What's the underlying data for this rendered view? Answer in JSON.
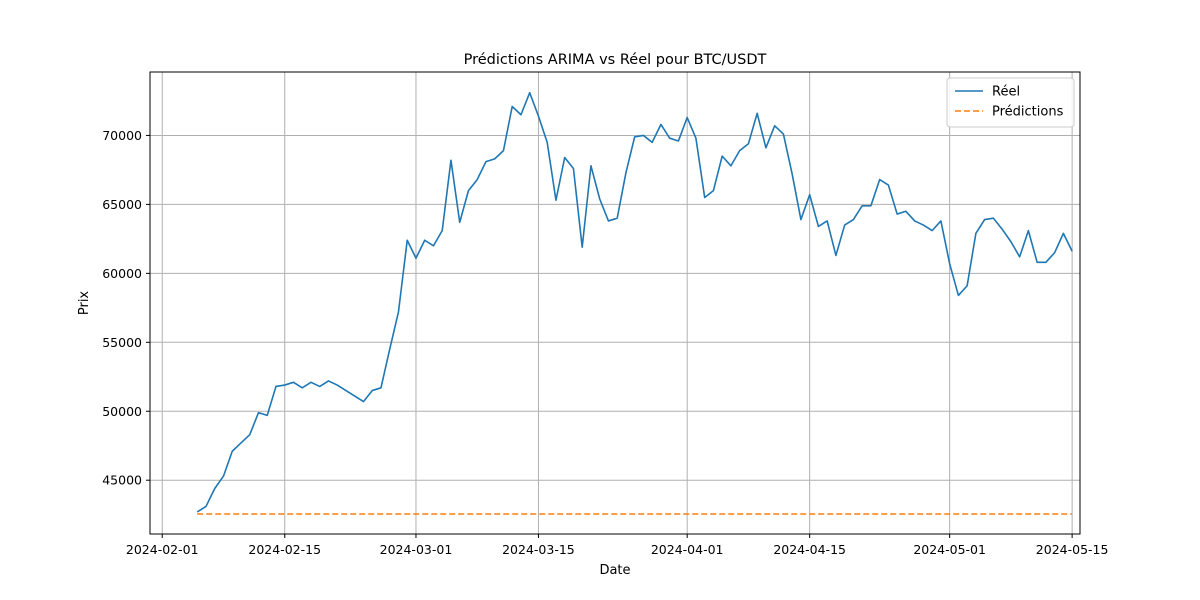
{
  "chart_data": {
    "type": "line",
    "title": "Prédictions ARIMA vs Réel pour BTC/USDT",
    "xlabel": "Date",
    "ylabel": "Prix",
    "x_start": "2024-02-05",
    "x_tick_labels": [
      "2024-02-01",
      "2024-02-15",
      "2024-03-01",
      "2024-03-15",
      "2024-04-01",
      "2024-04-15",
      "2024-05-01",
      "2024-05-15"
    ],
    "x_tick_day_offsets": [
      -4,
      10,
      25,
      39,
      56,
      70,
      86,
      100
    ],
    "x_range_day_offsets": [
      -5.4,
      100.9
    ],
    "y_ticks": [
      45000,
      50000,
      55000,
      60000,
      65000,
      70000
    ],
    "y_tick_labels": [
      "45000",
      "50000",
      "55000",
      "60000",
      "65000",
      "70000"
    ],
    "ylim": [
      41100,
      74600
    ],
    "grid": true,
    "legend_position": "top-right",
    "series": [
      {
        "name": "Réel",
        "color": "#1f77b4",
        "style": "solid",
        "values": [
          42700,
          43100,
          44400,
          45300,
          47100,
          47700,
          48300,
          49900,
          49700,
          51800,
          51900,
          52100,
          51700,
          52100,
          51800,
          52200,
          51900,
          51500,
          51100,
          50700,
          51500,
          51700,
          54500,
          57200,
          62400,
          61100,
          62400,
          62000,
          63100,
          68200,
          63700,
          66000,
          66800,
          68100,
          68300,
          68900,
          72100,
          71500,
          73100,
          71400,
          69500,
          65300,
          68400,
          67600,
          61900,
          67800,
          65400,
          63800,
          64000,
          67300,
          69900,
          70000,
          69500,
          70800,
          69800,
          69600,
          71300,
          69800,
          65500,
          66000,
          68500,
          67800,
          68900,
          69400,
          71600,
          69100,
          70700,
          70100,
          67200,
          63900,
          65700,
          63400,
          63800,
          61300,
          63500,
          63900,
          64900,
          64900,
          66800,
          66400,
          64300,
          64500,
          63800,
          63500,
          63100,
          63800,
          60700,
          58400,
          59100,
          62900,
          63900,
          64000,
          63200,
          62300,
          61200,
          63100,
          60800,
          60800,
          61500,
          62900,
          61600
        ]
      },
      {
        "name": "Prédictions",
        "color": "#ff7f0e",
        "style": "dashed",
        "constant_value": 42550,
        "count": 101
      }
    ]
  }
}
